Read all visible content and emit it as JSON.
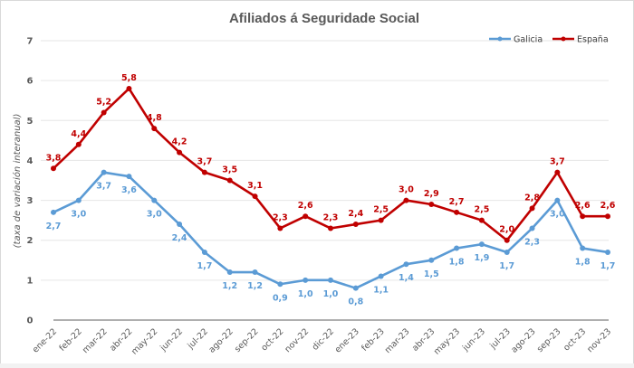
{
  "chart_data": {
    "type": "line",
    "title": "Afiliados á Seguridade Social",
    "xlabel": "",
    "ylabel": "(taxa de variación interanual)",
    "ylim": [
      0,
      7
    ],
    "yticks": [
      "0",
      "1",
      "2",
      "3",
      "4",
      "5",
      "6",
      "7"
    ],
    "grid": true,
    "legend_position": "top-right",
    "categories": [
      "ene-22",
      "feb-22",
      "mar-22",
      "abr-22",
      "may-22",
      "jun-22",
      "jul-22",
      "ago-22",
      "sep-22",
      "oct-22",
      "nov-22",
      "dic-22",
      "ene-23",
      "feb-23",
      "mar-23",
      "abr-23",
      "may-23",
      "jun-23",
      "jul-23",
      "ago-23",
      "sep-23",
      "oct-23",
      "nov-23"
    ],
    "series": [
      {
        "name": "Galicia",
        "color": "#5b9bd5",
        "values": [
          2.7,
          3.0,
          3.7,
          3.6,
          3.0,
          2.4,
          1.7,
          1.2,
          1.2,
          0.9,
          1.0,
          1.0,
          0.8,
          1.1,
          1.4,
          1.5,
          1.8,
          1.9,
          1.7,
          2.3,
          3.0,
          1.8,
          1.7
        ],
        "labels": [
          "2,7",
          "3,0",
          "3,7",
          "3,6",
          "3,0",
          "2,4",
          "1,7",
          "1,2",
          "1,2",
          "0,9",
          "1,0",
          "1,0",
          "0,8",
          "1,1",
          "1,4",
          "1,5",
          "1,8",
          "1,9",
          "1,7",
          "2,3",
          "3,0",
          "1,8",
          "1,7"
        ]
      },
      {
        "name": "España",
        "color": "#c00000",
        "values": [
          3.8,
          4.4,
          5.2,
          5.8,
          4.8,
          4.2,
          3.7,
          3.5,
          3.1,
          2.3,
          2.6,
          2.3,
          2.4,
          2.5,
          3.0,
          2.9,
          2.7,
          2.5,
          2.0,
          2.8,
          3.7,
          2.6,
          2.6
        ],
        "labels": [
          "3,8",
          "4,4",
          "5,2",
          "5,8",
          "4,8",
          "4,2",
          "3,7",
          "3,5",
          "3,1",
          "2,3",
          "2,6",
          "2,3",
          "2,4",
          "2,5",
          "3,0",
          "2,9",
          "2,7",
          "2,5",
          "2,0",
          "2,8",
          "3,7",
          "2,6",
          "2,6"
        ]
      }
    ]
  }
}
